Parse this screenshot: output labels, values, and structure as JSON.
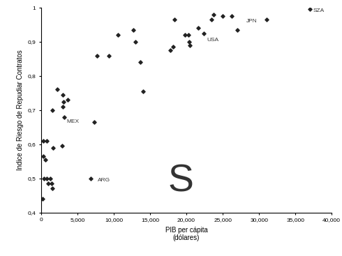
{
  "chart_data": {
    "type": "scatter",
    "x_label": "PIB per cápita\n(dólares)",
    "y_label": "Indice de Riesgo de Repudiar Contratos",
    "color": "#222222",
    "marker": "diamond",
    "grid": false,
    "x": [
      200,
      300,
      450,
      550,
      300,
      800,
      750,
      1000,
      1250,
      1450,
      1600,
      1650,
      1550,
      2200,
      2900,
      3000,
      3000,
      3200,
      3100,
      3700,
      6800,
      7300,
      7700,
      9300,
      10600,
      12700,
      13000,
      13700,
      14000,
      17800,
      18200,
      18400,
      19800,
      20300,
      20500,
      20400,
      21600,
      22400,
      23500,
      23700,
      25000,
      26200,
      27000,
      31000,
      37000
    ],
    "values": [
      0.44,
      0.565,
      0.5,
      0.555,
      0.61,
      0.61,
      0.5,
      0.485,
      0.5,
      0.485,
      0.47,
      0.59,
      0.7,
      0.76,
      0.595,
      0.71,
      0.745,
      0.68,
      0.725,
      0.73,
      0.5,
      0.665,
      0.86,
      0.86,
      0.92,
      0.935,
      0.9,
      0.84,
      0.755,
      0.875,
      0.885,
      0.965,
      0.92,
      0.92,
      0.89,
      0.9,
      0.94,
      0.925,
      0.965,
      0.98,
      0.975,
      0.975,
      0.935,
      0.965,
      0.995
    ],
    "annotations": [
      {
        "text": "MEX",
        "x": 3500,
        "y": 0.665
      },
      {
        "text": "ARG",
        "x": 7800,
        "y": 0.495
      },
      {
        "text": "USA",
        "x": 22800,
        "y": 0.905
      },
      {
        "text": "JPN",
        "x": 28200,
        "y": 0.96
      },
      {
        "text": "SZA",
        "x": 37400,
        "y": 0.99
      },
      {
        "text": "S",
        "x": 17500,
        "y": 0.49
      }
    ],
    "xlim": [
      0,
      40000
    ],
    "ylim": [
      0.4,
      1
    ],
    "xticks": [
      0,
      {
        "value": 5000,
        "label": "5,000"
      },
      {
        "value": 10000,
        "label": "10,000"
      },
      {
        "value": 15000,
        "label": "15,000"
      },
      {
        "value": 20000,
        "label": "20,000"
      },
      {
        "value": 25000,
        "label": "25,000"
      },
      {
        "value": 30000,
        "label": "30,000"
      },
      {
        "value": 35000,
        "label": "35,000"
      },
      {
        "value": 40000,
        "label": "40,000"
      }
    ],
    "yticks": [
      {
        "value": 0.4,
        "label": "0,4"
      },
      {
        "value": 0.5,
        "label": "0,5"
      },
      {
        "value": 0.6,
        "label": "0,6"
      },
      {
        "value": 0.7,
        "label": "0,7"
      },
      {
        "value": 0.8,
        "label": "0,8"
      },
      {
        "value": 0.9,
        "label": "0,9"
      },
      1
    ]
  }
}
